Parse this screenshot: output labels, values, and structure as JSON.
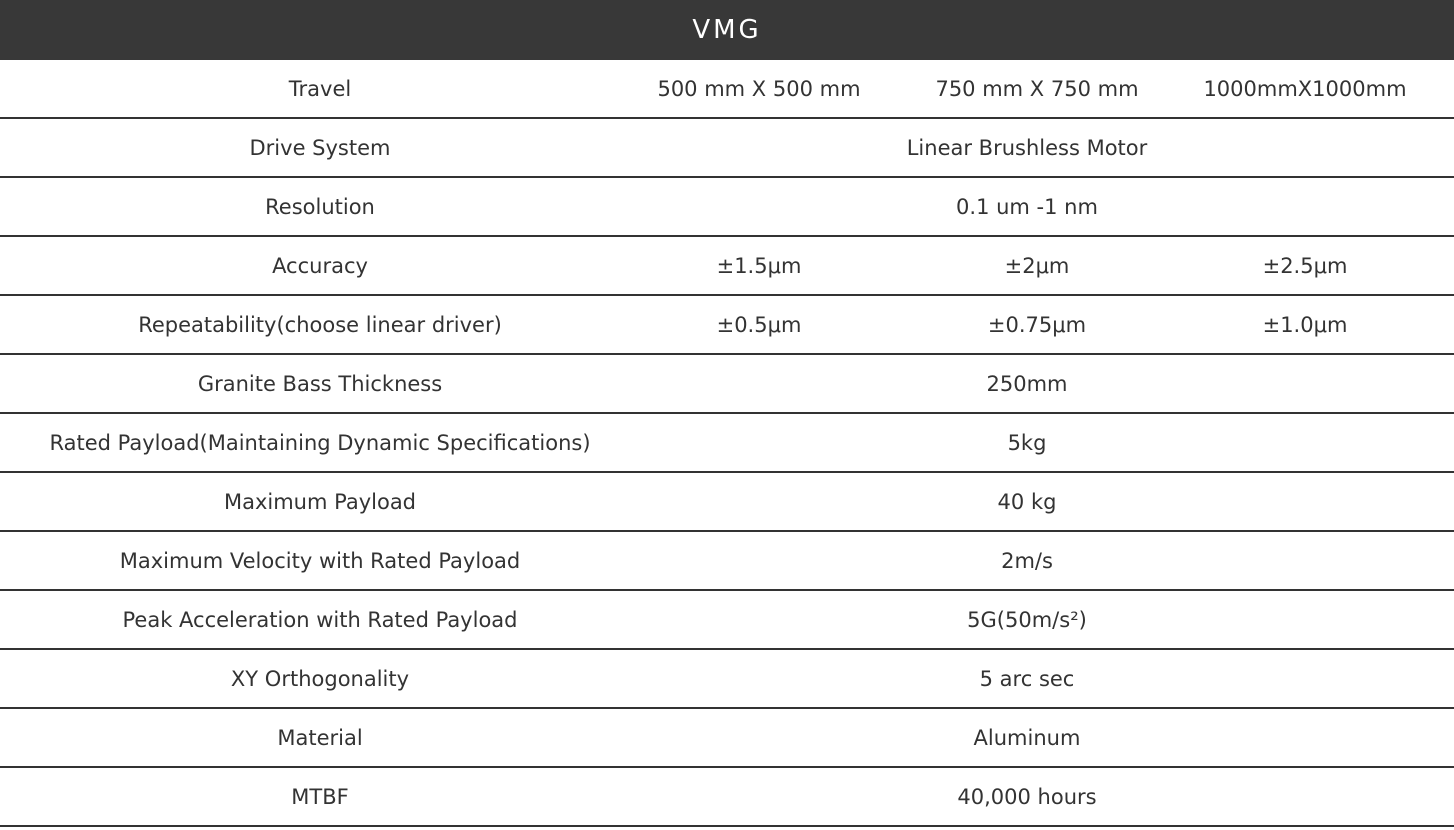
{
  "header": {
    "title": "VMG"
  },
  "table": {
    "rows": [
      [
        "Travel",
        "500 mm X 500 mm",
        "750 mm X 750 mm",
        "1000mmX1000mm"
      ],
      [
        "Drive System",
        "Linear Brushless Motor"
      ],
      [
        "Resolution",
        "0.1 um -1 nm"
      ],
      [
        "Accuracy",
        "±1.5μm",
        "±2μm",
        "±2.5μm"
      ],
      [
        "Repeatability(choose linear driver)",
        "±0.5μm",
        "±0.75μm",
        "±1.0μm"
      ],
      [
        "Granite Bass Thickness",
        "250mm"
      ],
      [
        "Rated Payload(Maintaining Dynamic Specifications)",
        "5kg"
      ],
      [
        "Maximum Payload",
        "40 kg"
      ],
      [
        "Maximum Velocity with Rated Payload",
        "2m/s"
      ],
      [
        "Peak Acceleration with Rated Payload",
        "5G(50m/s²)"
      ],
      [
        "XY Orthogonality",
        "5 arc sec"
      ],
      [
        "Material",
        "Aluminum"
      ],
      [
        "MTBF",
        "40,000 hours"
      ]
    ]
  }
}
